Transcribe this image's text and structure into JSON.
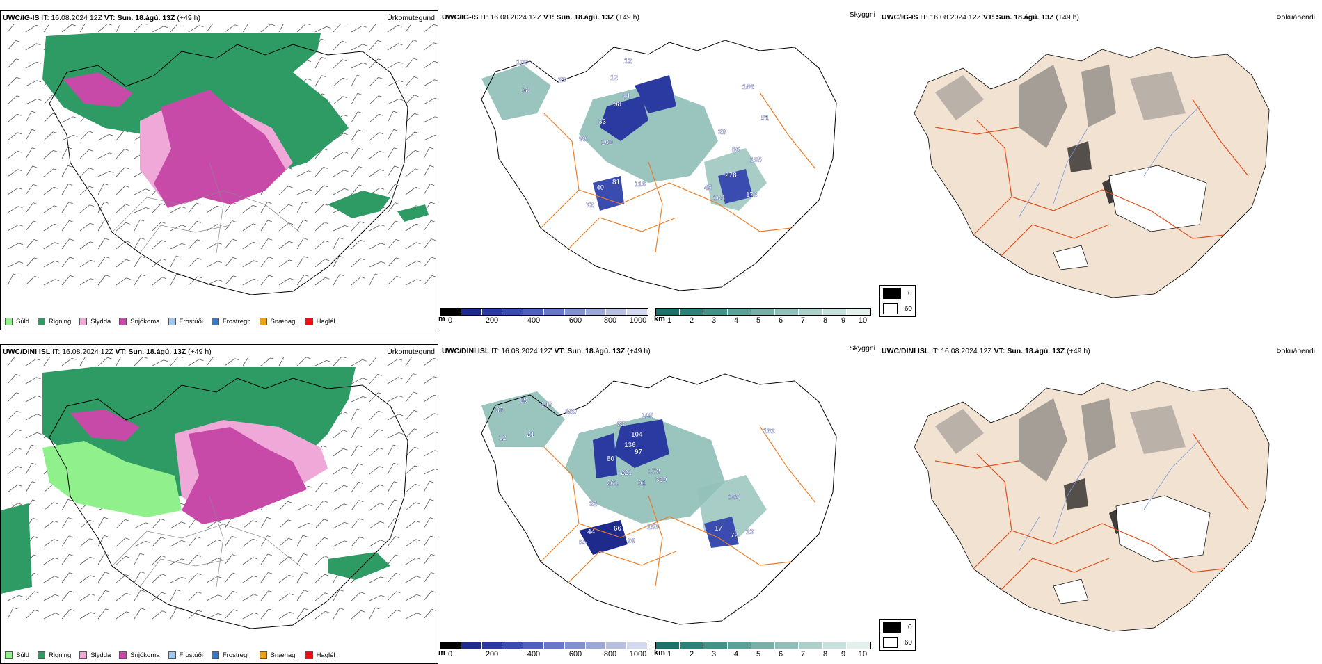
{
  "rows": [
    {
      "model": "UWC/IG-IS",
      "it_label": "IT:",
      "it": "16.08.2024 12Z",
      "vt_label": "VT:",
      "vt": "Sun. 18.ágú. 13Z",
      "lead": "(+49 h)"
    },
    {
      "model": "UWC/DINI ISL",
      "it_label": "IT:",
      "it": "16.08.2024 12Z",
      "vt_label": "VT:",
      "vt": "Sun. 18.ágú. 13Z",
      "lead": "(+49 h)"
    }
  ],
  "titles": {
    "precip_type": "Úrkomutegund",
    "cloud": "Skyggni",
    "fog": "Þokuábendi"
  },
  "precip_legend": [
    {
      "label": "Súld",
      "color": "#8ff08c"
    },
    {
      "label": "Rigning",
      "color": "#2e9a64"
    },
    {
      "label": "Slydda",
      "color": "#f0a8d8"
    },
    {
      "label": "Snjókoma",
      "color": "#c84aa8"
    },
    {
      "label": "Frostúði",
      "color": "#a0c8f0"
    },
    {
      "label": "Frostregn",
      "color": "#3a78c8"
    },
    {
      "label": "Snæhagl",
      "color": "#f0a020"
    },
    {
      "label": "Haglél",
      "color": "#e81010"
    }
  ],
  "ceiling_bar": {
    "unit": "m",
    "ticks": [
      "0",
      "200",
      "400",
      "600",
      "800",
      "1000"
    ],
    "colors": [
      "#000000",
      "#1e2a8c",
      "#2a3aa0",
      "#3a4cb0",
      "#5060bc",
      "#6878c4",
      "#8290cc",
      "#9ca8d8",
      "#b8c0e2",
      "#d4d8ee"
    ]
  },
  "visibility_bar": {
    "unit": "km",
    "ticks": [
      "1",
      "2",
      "3",
      "4",
      "5",
      "6",
      "7",
      "8",
      "9",
      "10"
    ],
    "colors": [
      "#1e7068",
      "#2e8078",
      "#469088",
      "#5ea098",
      "#78b0a8",
      "#92c0b8",
      "#aed0ca",
      "#c8e0dc",
      "#e2f0ee"
    ]
  },
  "fog_legend": [
    {
      "label": "0",
      "color": "#000000"
    },
    {
      "label": "60",
      "color": "#ffffff"
    }
  ],
  "ceiling_labels_top": [
    "100",
    "98",
    "12",
    "44",
    "98",
    "12",
    "33",
    "166",
    "51",
    "23",
    "99",
    "100",
    "30",
    "86",
    "185",
    "278",
    "40",
    "81",
    "116",
    "45",
    "104",
    "173",
    "72"
  ],
  "ceiling_labels_bottom": [
    "33",
    "89",
    "147",
    "190",
    "21",
    "12",
    "23",
    "136",
    "104",
    "105",
    "97",
    "162",
    "80",
    "221",
    "172",
    "261",
    "91",
    "360",
    "32",
    "164",
    "66",
    "156",
    "44",
    "65",
    "99",
    "17",
    "72",
    "13"
  ],
  "colors": {
    "land_outline": "#000000",
    "road": "#e87e28",
    "fog_land": "#f1e2d2",
    "fog_road": "#e0501e",
    "river": "#7f9ad9"
  }
}
